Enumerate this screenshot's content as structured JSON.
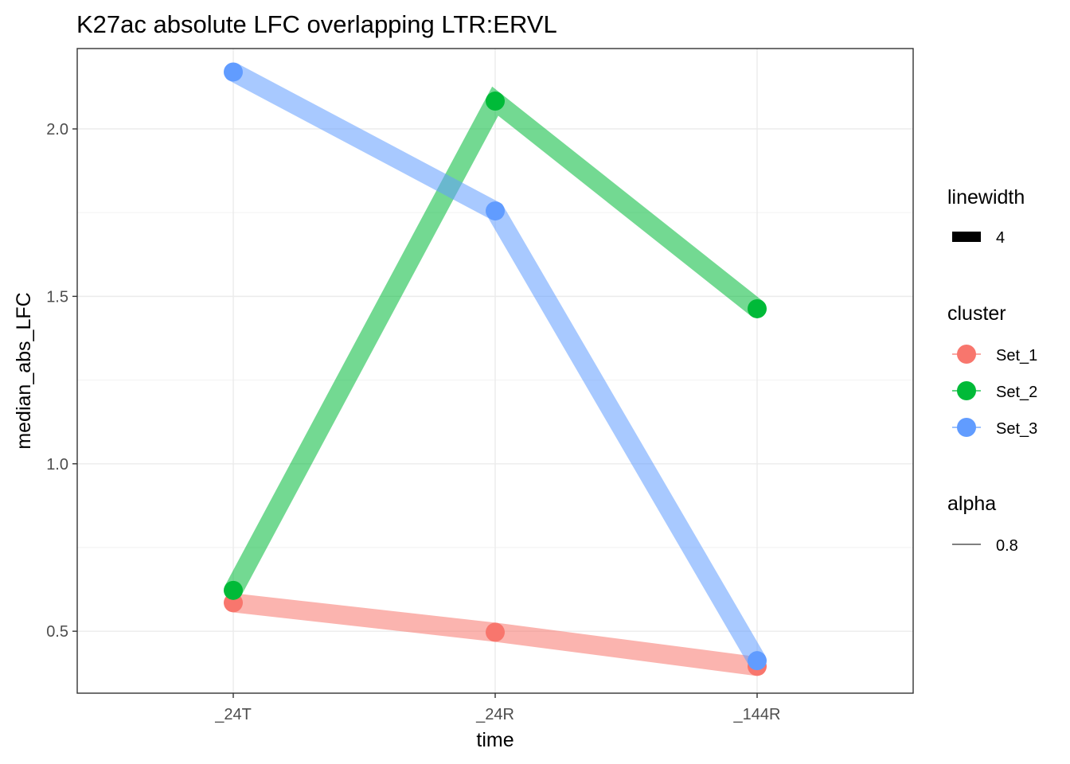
{
  "chart_data": {
    "type": "line",
    "title": "K27ac absolute LFC overlapping LTR:ERVL",
    "xlabel": "time",
    "ylabel": "median_abs_LFC",
    "categories": [
      "_24T",
      "_24R",
      "_144R"
    ],
    "ylim": [
      0.315,
      2.24
    ],
    "yticks": [
      0.5,
      1.0,
      1.5,
      2.0
    ],
    "ytick_labels": [
      "0.5",
      "1.0",
      "1.5",
      "2.0"
    ],
    "grid": true,
    "legend_position": "right",
    "series": [
      {
        "name": "Set_1",
        "color": "#F8766D",
        "values": [
          0.585,
          0.497,
          0.395
        ]
      },
      {
        "name": "Set_2",
        "color": "#00BA38",
        "values": [
          0.622,
          2.083,
          1.463
        ]
      },
      {
        "name": "Set_3",
        "color": "#619CFF",
        "values": [
          2.17,
          1.755,
          0.412
        ]
      }
    ],
    "legends": {
      "linewidth": {
        "title": "linewidth",
        "label": "4"
      },
      "cluster": {
        "title": "cluster"
      },
      "alpha": {
        "title": "alpha",
        "label": "0.8"
      }
    }
  }
}
